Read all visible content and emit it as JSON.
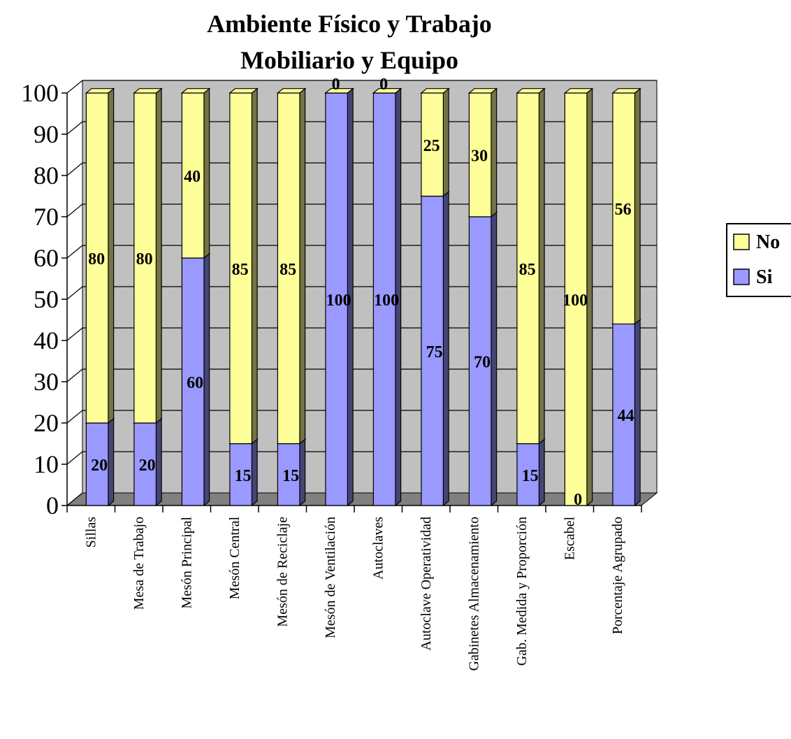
{
  "chart_data": {
    "type": "bar",
    "stacked": true,
    "title_lines": [
      "Ambiente Físico y Trabajo",
      "Mobiliario y Equipo"
    ],
    "categories": [
      "Sillas",
      "Mesa de Trabajo",
      "Mesón Principal",
      "Mesón Central",
      "Mesón de Reciclaje",
      "Mesón de Ventilación",
      "Autoclaves",
      "Autoclave Operatividad",
      "Gabinetes Almacenamiento",
      "Gab. Medida y Proporción",
      "Escabel",
      "Porcentaje Agrupado"
    ],
    "series": [
      {
        "name": "Si",
        "color": "#9999ff",
        "values": [
          20,
          20,
          60,
          15,
          15,
          100,
          100,
          75,
          70,
          15,
          0,
          44
        ]
      },
      {
        "name": "No",
        "color": "#ffff99",
        "values": [
          80,
          80,
          40,
          85,
          85,
          0,
          0,
          25,
          30,
          85,
          100,
          56
        ]
      }
    ],
    "ylim": [
      0,
      100
    ],
    "yticks": [
      0,
      10,
      20,
      30,
      40,
      50,
      60,
      70,
      80,
      90,
      100
    ],
    "grid": true,
    "legend": {
      "placement": "right",
      "order": [
        "No",
        "Si"
      ]
    },
    "colors": {
      "wall": "#c0c0c0",
      "floor": "#808080"
    }
  }
}
